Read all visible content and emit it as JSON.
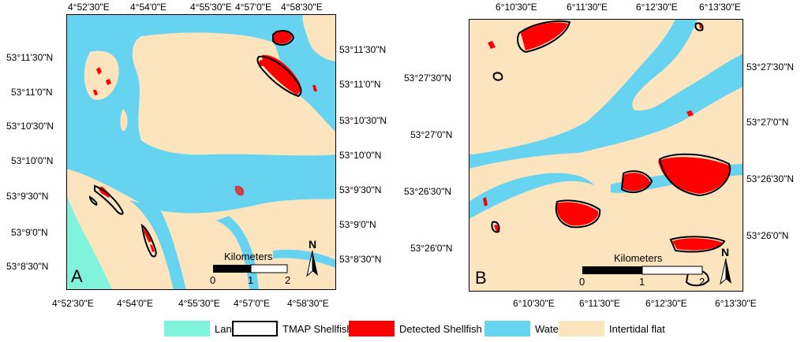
{
  "colors": {
    "land": "#7ff3dc",
    "water": "#66d4f0",
    "flat": "#fbe4be",
    "detected": "#ff0000",
    "tmap_outline": "#000000"
  },
  "panelA": {
    "label": "A",
    "top_ticks": [
      "4°52'30\"E",
      "4°54'0\"E",
      "4°55'30\"E",
      "4°57'0\"E",
      "4°58'30\"E"
    ],
    "bottom_ticks": [
      "4°52'30\"E",
      "4°54'0\"E",
      "4°55'30\"E",
      "4°57'0\"E",
      "4°58'30\"E"
    ],
    "left_ticks": [
      "53°11'30\"N",
      "53°11'0\"N",
      "53°10'30\"N",
      "53°10'0\"N",
      "53°9'30\"N",
      "53°9'0\"N",
      "53°8'30\"N"
    ],
    "right_ticks": [
      "53°11'30\"N",
      "53°11'0\"N",
      "53°10'30\"N",
      "53°10'0\"N",
      "53°9'30\"N",
      "53°9'0\"N",
      "53°8'30\"N"
    ],
    "scale": {
      "title": "Kilometers",
      "labels": [
        "0",
        "1",
        "2"
      ]
    },
    "north": "N"
  },
  "panelB": {
    "label": "B",
    "top_ticks": [
      "6°10'30\"E",
      "6°11'30\"E",
      "6°12'30\"E",
      "6°13'30\"E"
    ],
    "bottom_ticks": [
      "6°10'30\"E",
      "6°11'30\"E",
      "6°12'30\"E",
      "6°13'30\"E"
    ],
    "left_ticks": [
      "53°27'30\"N",
      "53°27'0\"N",
      "53°26'30\"N",
      "53°26'0\"N"
    ],
    "right_ticks": [
      "53°27'30\"N",
      "53°27'0\"N",
      "53°26'30\"N",
      "53°26'0\"N"
    ],
    "scale": {
      "title": "Kilometers",
      "labels": [
        "0",
        "1",
        "2"
      ]
    },
    "north": "N"
  },
  "legend": [
    {
      "key": "land",
      "label": "Land"
    },
    {
      "key": "tmap",
      "label": "TMAP Shellfish"
    },
    {
      "key": "detected",
      "label": "Detected Shellfish"
    },
    {
      "key": "water",
      "label": "Water"
    },
    {
      "key": "flat",
      "label": "Intertidal flat"
    }
  ]
}
